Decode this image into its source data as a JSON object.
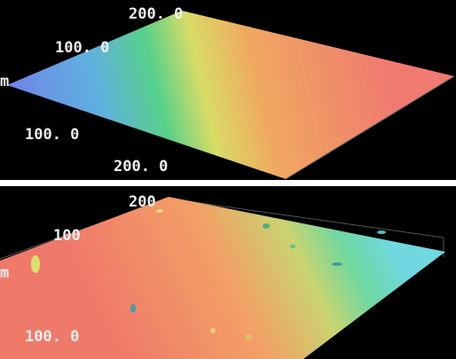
{
  "panels": [
    {
      "labels": [
        "200. 0",
        "100. 0",
        "m",
        "100. 0",
        "200. 0"
      ]
    },
    {
      "labels": [
        "200",
        "100",
        "m",
        "100. 0"
      ]
    }
  ]
}
